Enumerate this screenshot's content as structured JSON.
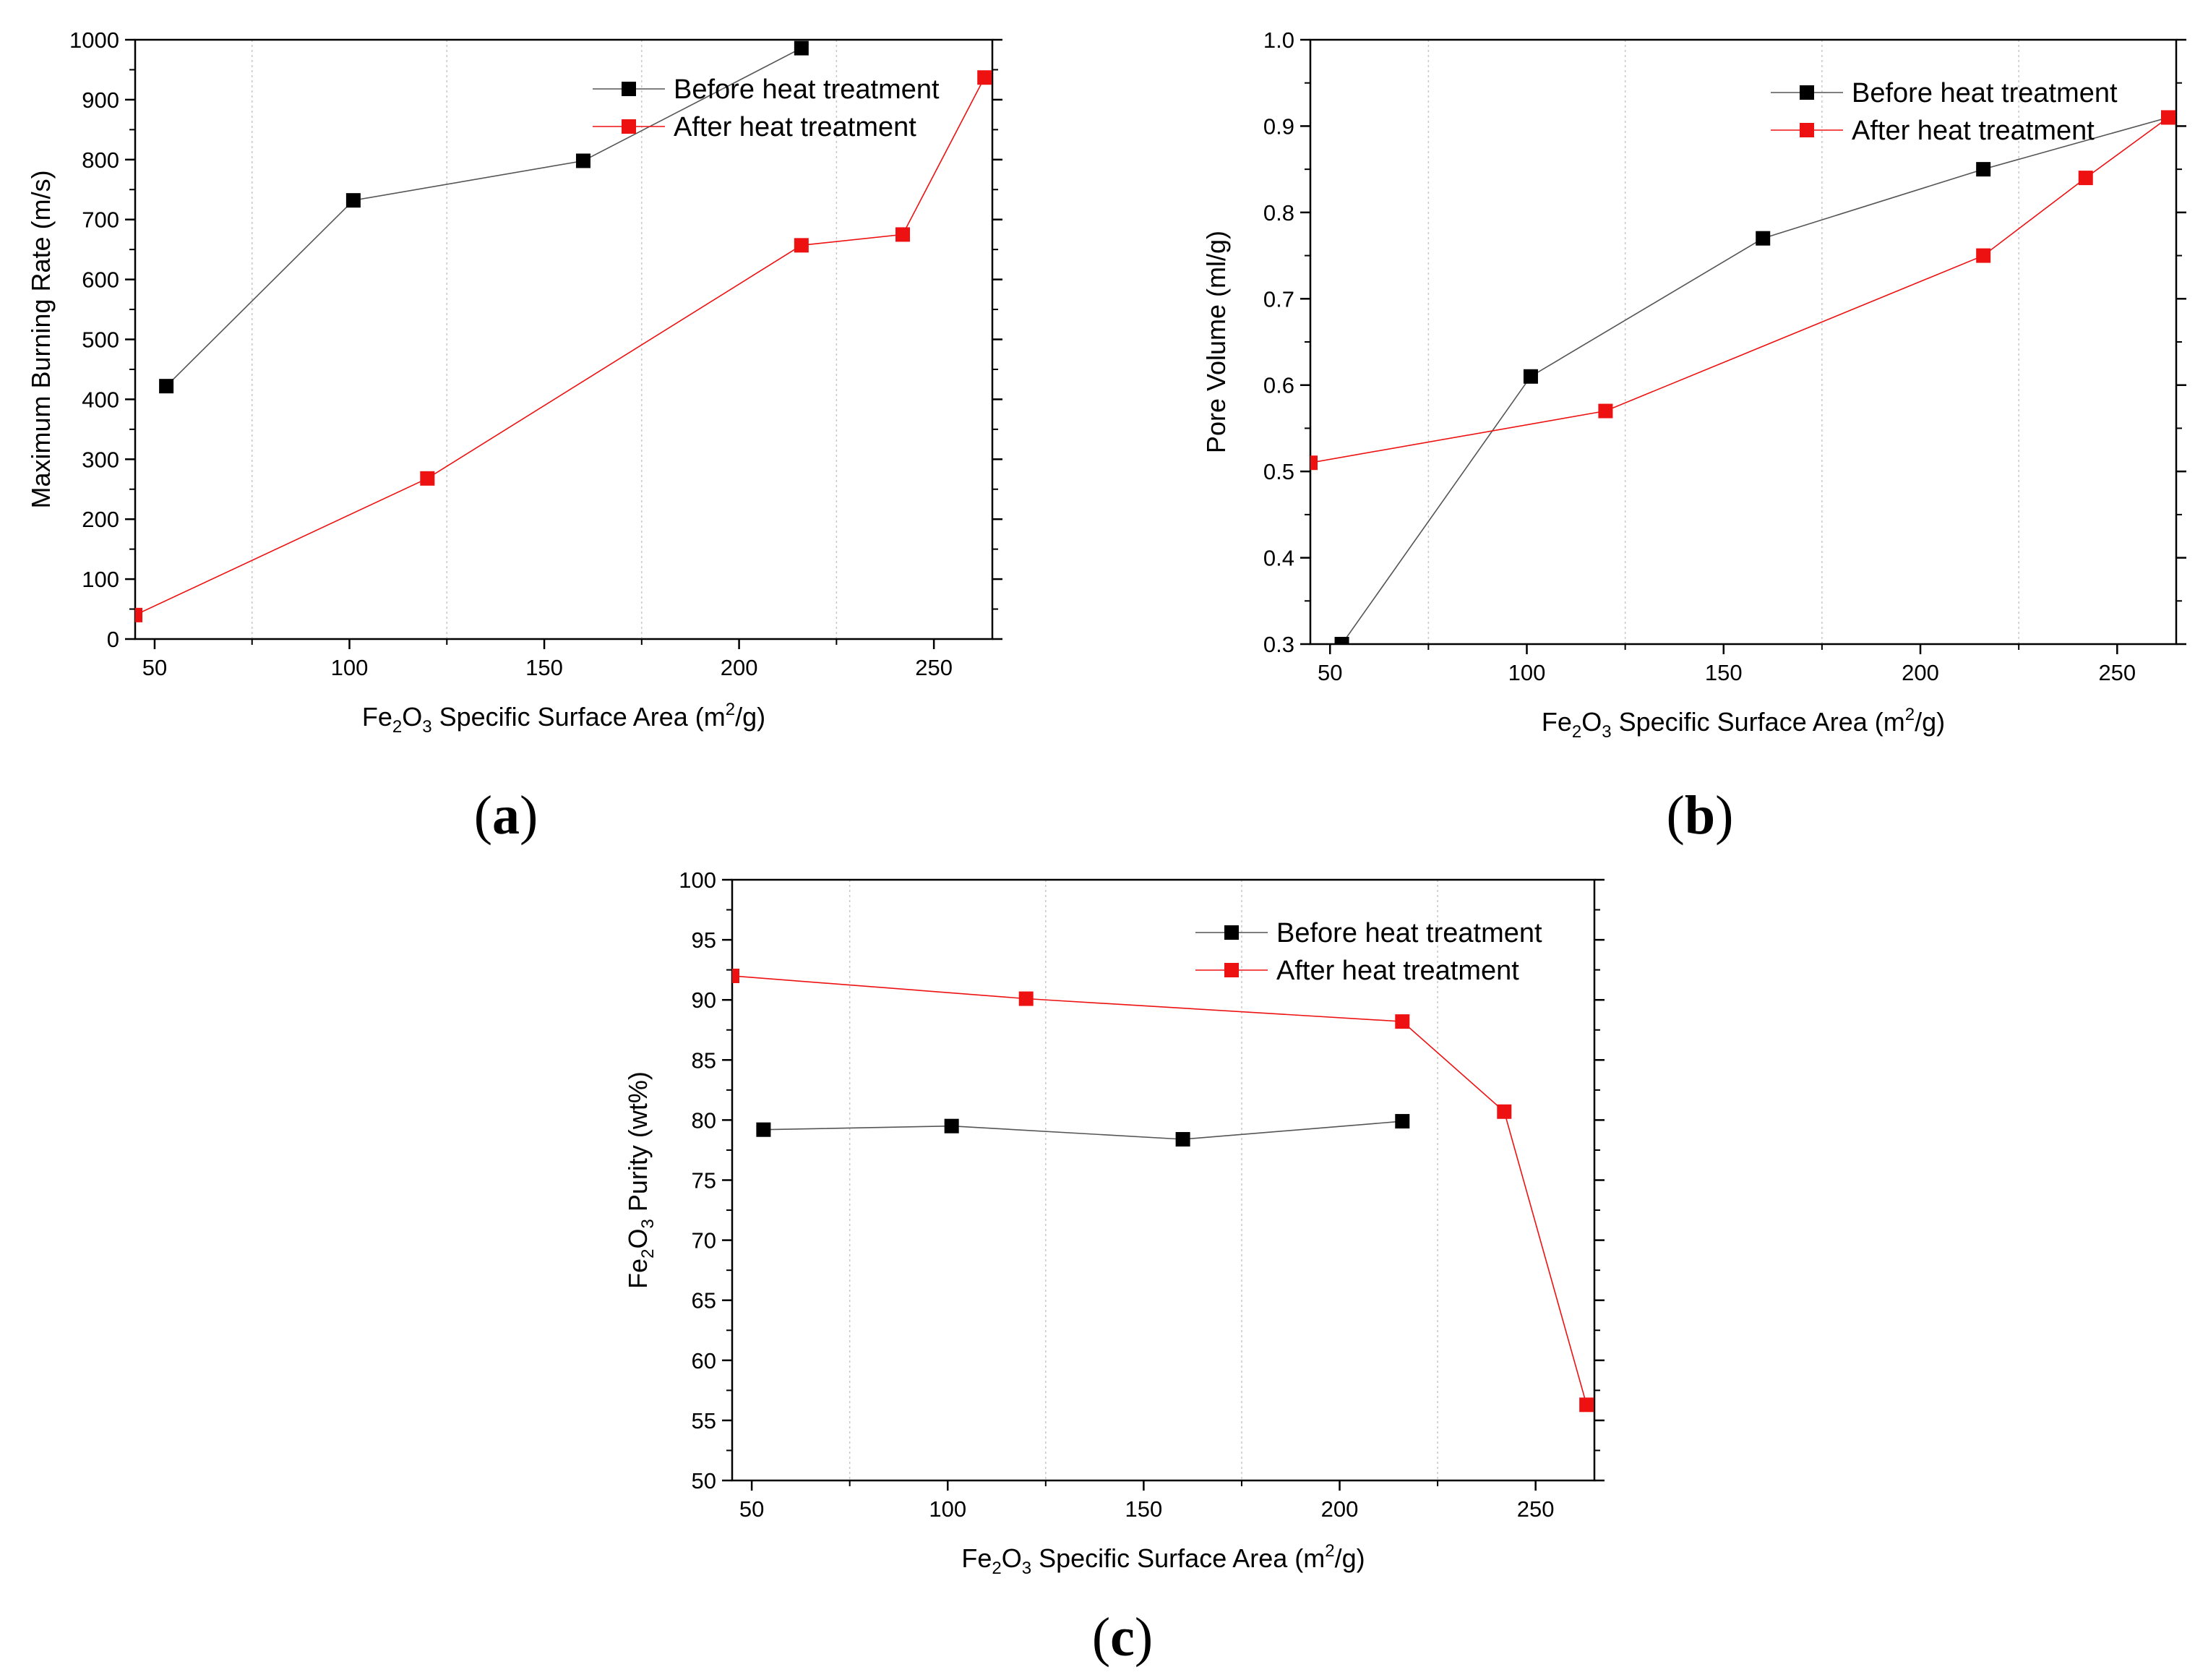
{
  "chart_data": [
    {
      "panel_label": "a",
      "type": "line",
      "xlabel": {
        "pre": "Fe",
        "sub1": "2",
        "mid": "O",
        "sub2": "3",
        "post": " Specific Surface Area (m",
        "sup": "2",
        "end": "/g)"
      },
      "ylabel": "Maximum Burning Rate (m/s)",
      "xlim": [
        45,
        265
      ],
      "ylim": [
        0,
        1000
      ],
      "xticks": [
        50,
        100,
        150,
        200,
        250
      ],
      "xtick_labels": [
        "50",
        "100",
        "150",
        "200",
        "250"
      ],
      "yticks": [
        0,
        100,
        200,
        300,
        400,
        500,
        600,
        700,
        800,
        900,
        1000
      ],
      "ytick_labels": [
        "0",
        "100",
        "200",
        "300",
        "400",
        "500",
        "600",
        "700",
        "800",
        "900",
        "1000"
      ],
      "vgrid": [
        75,
        125,
        175,
        225
      ],
      "legend_position": "top-right",
      "series": [
        {
          "name": "Before heat treatment",
          "color": "#000000",
          "x": [
            53,
            101,
            160,
            216
          ],
          "y": [
            422,
            732,
            798,
            986
          ]
        },
        {
          "name": "After heat treatment",
          "color": "#ee1111",
          "x": [
            45,
            120,
            216,
            242,
            263
          ],
          "y": [
            40,
            268,
            657,
            675,
            937
          ]
        }
      ]
    },
    {
      "panel_label": "b",
      "type": "line",
      "xlabel": {
        "pre": "Fe",
        "sub1": "2",
        "mid": "O",
        "sub2": "3",
        "post": " Specific Surface Area (m",
        "sup": "2",
        "end": "/g)"
      },
      "ylabel": "Pore Volume (ml/g)",
      "xlim": [
        45,
        265
      ],
      "ylim": [
        0.3,
        1.0
      ],
      "xticks": [
        50,
        100,
        150,
        200,
        250
      ],
      "xtick_labels": [
        "50",
        "100",
        "150",
        "200",
        "250"
      ],
      "yticks": [
        0.3,
        0.4,
        0.5,
        0.6,
        0.7,
        0.8,
        0.9,
        1.0
      ],
      "ytick_labels": [
        "0.3",
        "0.4",
        "0.5",
        "0.6",
        "0.7",
        "0.8",
        "0.9",
        "1.0"
      ],
      "vgrid": [
        75,
        125,
        175,
        225
      ],
      "legend_position": "top-right",
      "series": [
        {
          "name": "Before heat treatment",
          "color": "#000000",
          "x": [
            53,
            101,
            160,
            216,
            263
          ],
          "y": [
            0.3,
            0.61,
            0.77,
            0.85,
            0.91
          ]
        },
        {
          "name": "After heat treatment",
          "color": "#ee1111",
          "x": [
            45,
            120,
            216,
            242,
            263
          ],
          "y": [
            0.51,
            0.57,
            0.75,
            0.84,
            0.91
          ]
        }
      ]
    },
    {
      "panel_label": "c",
      "type": "line",
      "xlabel": {
        "pre": "Fe",
        "sub1": "2",
        "mid": "O",
        "sub2": "3",
        "post": " Specific Surface Area (m",
        "sup": "2",
        "end": "/g)"
      },
      "ylabel": {
        "pre": "Fe",
        "sub1": "2",
        "mid": "O",
        "sub2": "3",
        "post": " Purity (wt%)"
      },
      "xlim": [
        45,
        265
      ],
      "ylim": [
        50,
        100
      ],
      "xticks": [
        50,
        100,
        150,
        200,
        250
      ],
      "xtick_labels": [
        "50",
        "100",
        "150",
        "200",
        "250"
      ],
      "yticks": [
        50,
        55,
        60,
        65,
        70,
        75,
        80,
        85,
        90,
        95,
        100
      ],
      "ytick_labels": [
        "50",
        "55",
        "60",
        "65",
        "70",
        "75",
        "80",
        "85",
        "90",
        "95",
        "100"
      ],
      "vgrid": [
        75,
        125,
        175,
        225
      ],
      "legend_position": "top-right",
      "series": [
        {
          "name": "Before heat treatment",
          "color": "#000000",
          "x": [
            53,
            101,
            160,
            216
          ],
          "y": [
            79.2,
            79.5,
            78.4,
            79.9
          ]
        },
        {
          "name": "After heat treatment",
          "color": "#ee1111",
          "x": [
            45,
            120,
            216,
            242,
            263
          ],
          "y": [
            92.0,
            90.1,
            88.2,
            80.7,
            56.3
          ]
        }
      ]
    }
  ]
}
